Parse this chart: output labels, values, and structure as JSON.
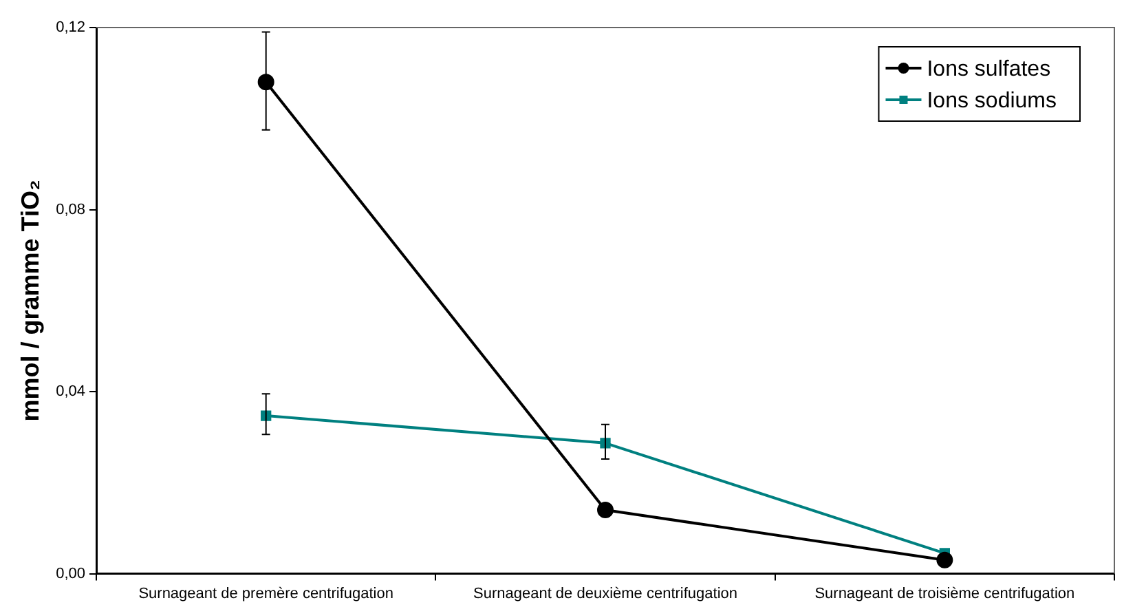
{
  "chart_data": {
    "type": "line",
    "ylabel": "mmol / gramme TiO₂",
    "categories": [
      "Surnageant de premère centrifugation",
      "Surnageant de deuxième centrifugation",
      "Surnageant de troisième centrifugation"
    ],
    "series": [
      {
        "name": "Ions sulfates",
        "color": "#000000",
        "marker": "circle",
        "values": [
          0.108,
          0.014,
          0.003
        ],
        "errors": [
          [
            0.0975,
            0.119
          ],
          null,
          null
        ]
      },
      {
        "name": "Ions sodiums",
        "color": "#008080",
        "marker": "square",
        "values": [
          0.0347,
          0.0287,
          0.0045
        ],
        "errors": [
          [
            0.0306,
            0.0395
          ],
          [
            0.0252,
            0.0328
          ],
          null
        ]
      }
    ],
    "ylim": [
      0,
      0.12
    ],
    "yticks": [
      {
        "value": 0,
        "label": "0,00"
      },
      {
        "value": 0.04,
        "label": "0,04"
      },
      {
        "value": 0.08,
        "label": "0,08"
      },
      {
        "value": 0.12,
        "label": "0,12"
      }
    ],
    "grid": false,
    "legend": "top right",
    "line_style": "solid"
  }
}
